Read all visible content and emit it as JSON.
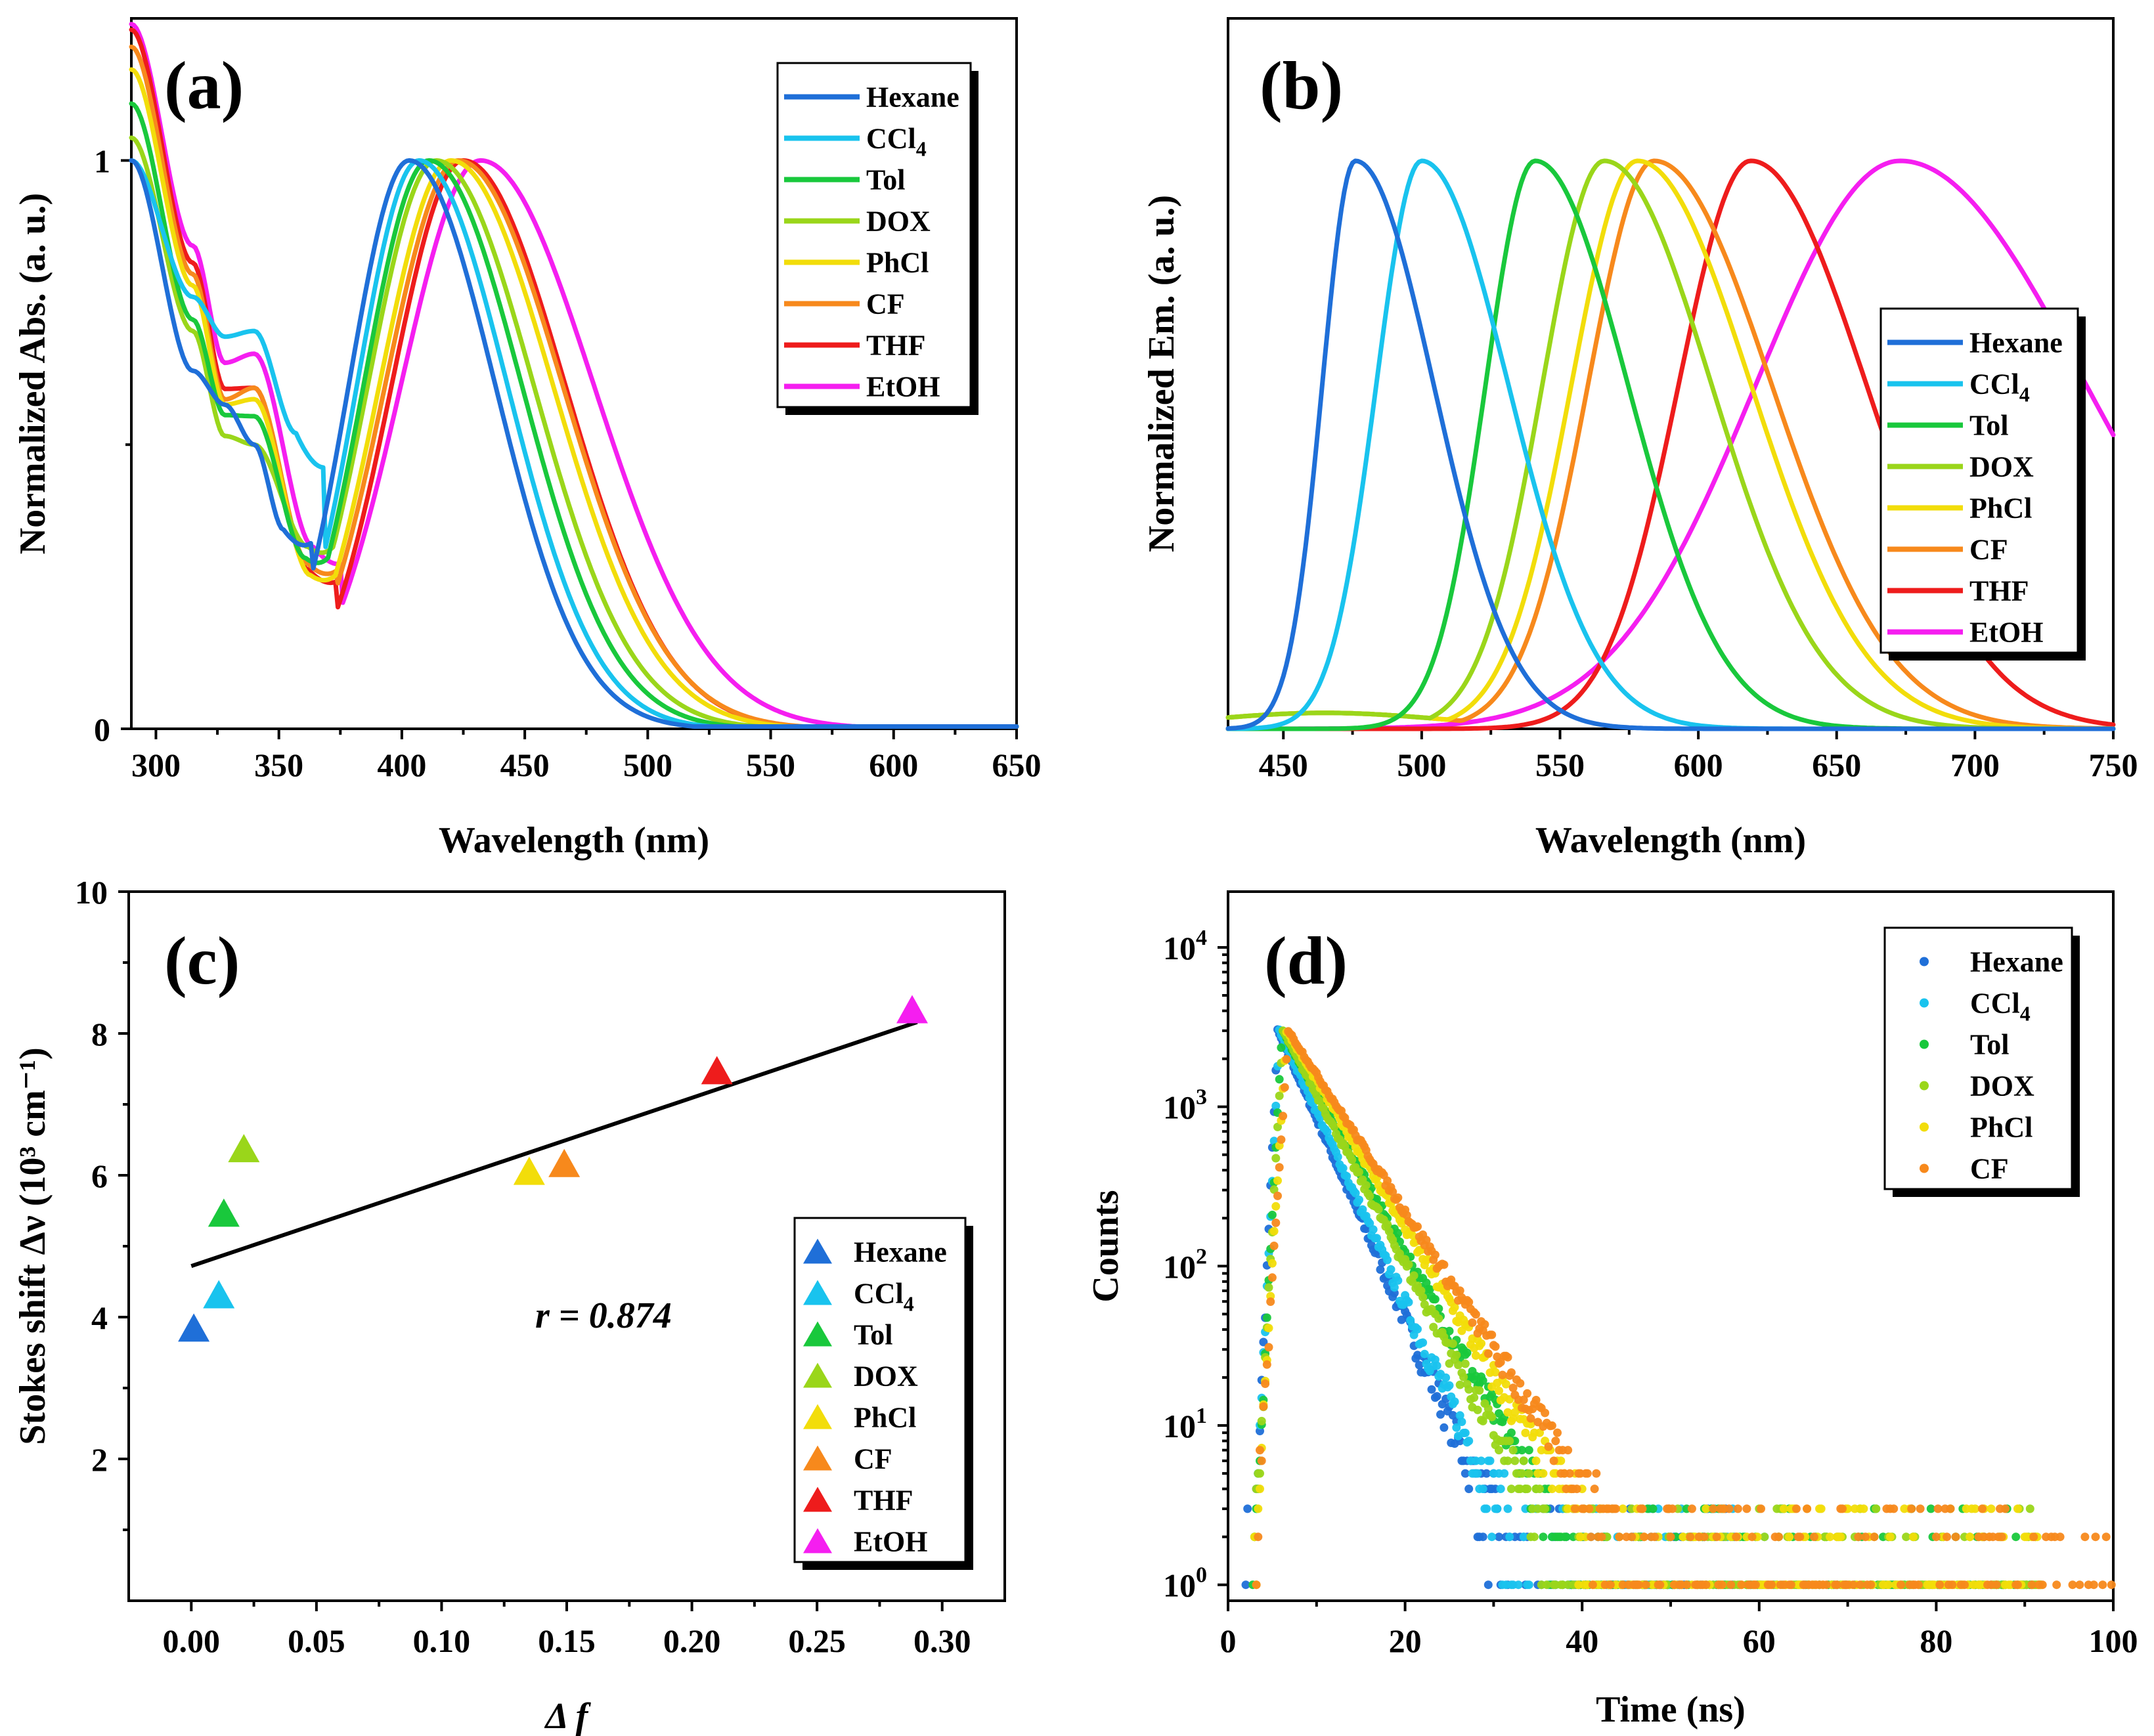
{
  "colors": {
    "Hexane": "#1f6fd8",
    "CCl4": "#19c3ee",
    "Tol": "#19c83c",
    "DOX": "#9ad61a",
    "PhCl": "#f2dd0a",
    "CF": "#f7891c",
    "THF": "#ee1c1c",
    "EtOH": "#f51ef0"
  },
  "chart_data": [
    {
      "panel": "(a)",
      "type": "line",
      "xlabel": "Wavelength (nm)",
      "ylabel": "Normalized Abs. (a. u.)",
      "xlim": [
        290,
        650
      ],
      "ylim": [
        0,
        1.25
      ],
      "xticks": [
        "300",
        "350",
        "400",
        "450",
        "500",
        "550",
        "600",
        "650"
      ],
      "yticks": [
        "0",
        "1"
      ],
      "legend": [
        "Hexane",
        "CCl4",
        "Tol",
        "DOX",
        "PhCl",
        "CF",
        "THF",
        "EtOH"
      ],
      "series": [
        {
          "name": "Hexane",
          "peak": 403,
          "width": 38,
          "uv": [
            1.0,
            0.63,
            0.62,
            0.5,
            0.36
          ],
          "dip": 352,
          "dipval": 0.35
        },
        {
          "name": "CCl4",
          "peak": 407,
          "width": 39,
          "uv": [
            1.0,
            0.76,
            0.75,
            0.7,
            0.53
          ],
          "dip": 357,
          "dipval": 0.52
        },
        {
          "name": "Tol",
          "peak": 411,
          "width": 41,
          "uv": [
            1.1,
            0.72,
            0.6,
            0.55,
            0.3
          ],
          "dip": 361,
          "dipval": 0.3
        },
        {
          "name": "DOX",
          "peak": 414,
          "width": 43,
          "uv": [
            1.04,
            0.7,
            0.56,
            0.5,
            0.32
          ],
          "dip": 362,
          "dipval": 0.32
        },
        {
          "name": "PhCl",
          "peak": 420,
          "width": 45,
          "uv": [
            1.16,
            0.78,
            0.62,
            0.58,
            0.27
          ],
          "dip": 363,
          "dipval": 0.27
        },
        {
          "name": "CF",
          "peak": 423,
          "width": 46,
          "uv": [
            1.2,
            0.8,
            0.63,
            0.6,
            0.29
          ],
          "dip": 362,
          "dipval": 0.29
        },
        {
          "name": "THF",
          "peak": 425,
          "width": 45,
          "uv": [
            1.23,
            0.82,
            0.65,
            0.6,
            0.28
          ],
          "dip": 362,
          "dipval": 0.28
        },
        {
          "name": "EtOH",
          "peak": 432,
          "width": 50,
          "uv": [
            1.24,
            0.85,
            0.7,
            0.66,
            0.32
          ],
          "dip": 364,
          "dipval": 0.32
        }
      ]
    },
    {
      "panel": "(b)",
      "type": "line",
      "xlabel": "Wavelength (nm)",
      "ylabel": "Normalized Em. (a. u.)",
      "xlim": [
        430,
        750
      ],
      "ylim": [
        0,
        1.0
      ],
      "xticks": [
        "450",
        "500",
        "550",
        "600",
        "650",
        "700",
        "750"
      ],
      "legend": [
        "Hexane",
        "CCl4",
        "Tol",
        "DOX",
        "PhCl",
        "CF",
        "THF",
        "EtOH"
      ],
      "series": [
        {
          "name": "Hexane",
          "peak": 476,
          "wl": 16,
          "wr": 38
        },
        {
          "name": "CCl4",
          "peak": 500,
          "wl": 22,
          "wr": 42
        },
        {
          "name": "Tol",
          "peak": 541,
          "wl": 24,
          "wr": 45
        },
        {
          "name": "DOX",
          "peak": 566,
          "wl": 30,
          "wr": 52
        },
        {
          "name": "PhCl",
          "peak": 578,
          "wl": 32,
          "wr": 55
        },
        {
          "name": "CF",
          "peak": 584,
          "wl": 32,
          "wr": 57
        },
        {
          "name": "THF",
          "peak": 619,
          "wl": 35,
          "wr": 56
        },
        {
          "name": "EtOH",
          "peak": 673,
          "wl": 70,
          "wr": 90
        }
      ]
    },
    {
      "panel": "(c)",
      "type": "scatter",
      "xlabel": "Δ f",
      "ylabel": "Stokes shift Δν (10³ cm⁻¹)",
      "xlim": [
        -0.025,
        0.325
      ],
      "ylim": [
        0,
        10
      ],
      "xticks": [
        "0.00",
        "0.05",
        "0.10",
        "0.15",
        "0.20",
        "0.25",
        "0.30"
      ],
      "yticks": [
        "2",
        "4",
        "6",
        "8",
        "10"
      ],
      "points": [
        {
          "name": "Hexane",
          "x": 0.001,
          "y": 3.83
        },
        {
          "name": "CCl4",
          "x": 0.011,
          "y": 4.3
        },
        {
          "name": "Tol",
          "x": 0.013,
          "y": 5.45
        },
        {
          "name": "DOX",
          "x": 0.021,
          "y": 6.36
        },
        {
          "name": "PhCl",
          "x": 0.135,
          "y": 6.04
        },
        {
          "name": "CF",
          "x": 0.149,
          "y": 6.15
        },
        {
          "name": "THF",
          "x": 0.21,
          "y": 7.46
        },
        {
          "name": "EtOH",
          "x": 0.288,
          "y": 8.32
        }
      ],
      "fit": {
        "x0": 0.0,
        "y0": 4.72,
        "x1": 0.29,
        "y1": 8.16
      },
      "annotation": "r = 0.874",
      "legend": [
        "Hexane",
        "CCl4",
        "Tol",
        "DOX",
        "PhCl",
        "CF",
        "THF",
        "EtOH"
      ]
    },
    {
      "panel": "(d)",
      "type": "scatter",
      "scale": "log",
      "xlabel": "Time (ns)",
      "ylabel": "Counts",
      "xlim": [
        0,
        100
      ],
      "ylim_log": [
        -0.1,
        4.35
      ],
      "xticks": [
        "0",
        "20",
        "40",
        "60",
        "80",
        "100"
      ],
      "yticks_exp": [
        "0",
        "1",
        "2",
        "3",
        "4"
      ],
      "peak_counts": 3000,
      "series": [
        {
          "name": "Hexane",
          "peak_t": 5.6,
          "tau": 3.45
        },
        {
          "name": "CCl4",
          "peak_t": 5.8,
          "tau": 3.6
        },
        {
          "name": "Tol",
          "peak_t": 6.1,
          "tau": 4.35
        },
        {
          "name": "DOX",
          "peak_t": 6.2,
          "tau": 4.1
        },
        {
          "name": "PhCl",
          "peak_t": 6.6,
          "tau": 4.7
        },
        {
          "name": "CF",
          "peak_t": 6.8,
          "tau": 5.05
        }
      ],
      "legend": [
        "Hexane",
        "CCl4",
        "Tol",
        "DOX",
        "PhCl",
        "CF"
      ]
    }
  ],
  "text": {
    "a_label": "(a)",
    "b_label": "(b)",
    "c_label": "(c)",
    "d_label": "(d)",
    "annot_c": "r = 0.874"
  }
}
